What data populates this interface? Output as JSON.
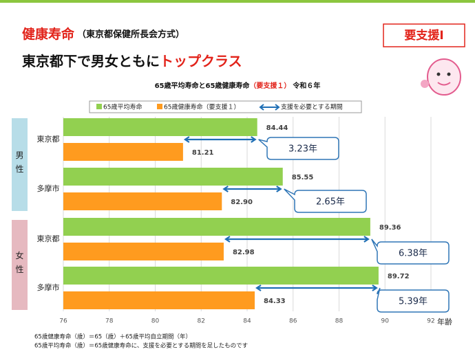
{
  "header": {
    "title": "健康寿命",
    "title_note": "（東京都保健所長会方式）",
    "subtitle": "東京都下で男女ともに",
    "subtitle_emph": "トップクラス",
    "badge": "要支援Ⅰ"
  },
  "chart_data": {
    "type": "hbar",
    "title": "65歳平均寿命と65歳健康寿命",
    "title_emph": "（要支援１）",
    "title_year": "令和６年",
    "categories": [
      "東京都",
      "多摩市",
      "東京都",
      "多摩市"
    ],
    "groups": [
      {
        "label": "男性"
      },
      {
        "label": "女性"
      }
    ],
    "series": [
      {
        "name": "65歳平均寿命",
        "color": "#92d050",
        "values": [
          84.44,
          85.55,
          89.36,
          89.72
        ],
        "value_labels": [
          "84.44",
          "85.55",
          "89.36",
          "89.72"
        ]
      },
      {
        "name": "65歳健康寿命（要支援１）",
        "color": "#ff9b1f",
        "values": [
          81.21,
          82.9,
          82.98,
          84.33
        ],
        "value_labels": [
          "81.21",
          "82.90",
          "82.98",
          "84.33"
        ]
      }
    ],
    "arrow_legend": "支援を必要とする期間",
    "arrow_color": "#1f6fb5",
    "gaps": [
      {
        "value": 3.23,
        "label": "3.23年"
      },
      {
        "value": 2.65,
        "label": "2.65年"
      },
      {
        "value": 6.38,
        "label": "6.38年"
      },
      {
        "value": 5.39,
        "label": "5.39年"
      }
    ],
    "xlim": [
      76,
      92
    ],
    "xticks": [
      76,
      78,
      80,
      82,
      84,
      86,
      88,
      90,
      92
    ],
    "xlabel": "年齢",
    "grid": true
  },
  "footnotes": [
    "65歳健康寿命（歳）＝65（歳）＋65歳平均自立期間（年）",
    "65歳平均寿命（歳）＝65歳健康寿命に、支援を必要とする期間を足したものです"
  ]
}
